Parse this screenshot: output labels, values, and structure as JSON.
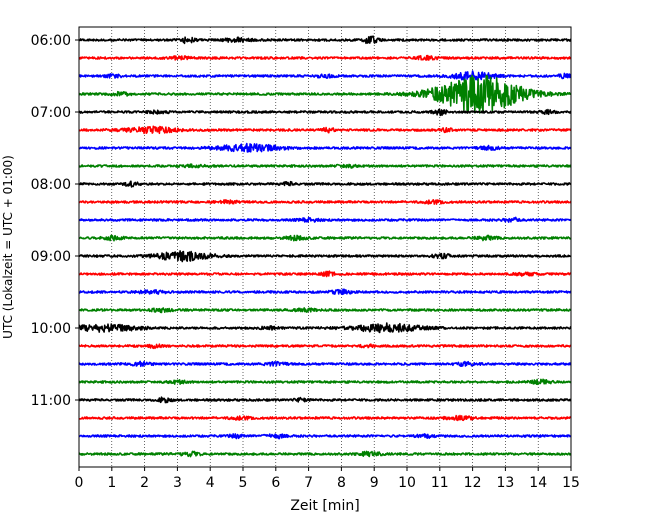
{
  "chart_data": {
    "type": "line",
    "title": "",
    "xlabel": "Zeit  [min]",
    "ylabel": "UTC (Lokalzeit = UTC + 01:00)",
    "xlim": [
      0,
      15
    ],
    "x_ticks": [
      "0",
      "1",
      "2",
      "3",
      "4",
      "5",
      "6",
      "7",
      "8",
      "9",
      "10",
      "11",
      "12",
      "13",
      "14",
      "15"
    ],
    "y_ticks": [
      "06:00",
      "07:00",
      "08:00",
      "09:00",
      "10:00",
      "11:00"
    ],
    "trace_interval_min": 15,
    "first_trace": "06:00",
    "grid": "vertical dotted at each minute",
    "line_colors": [
      "#000000",
      "#ff0000",
      "#0000ff",
      "#008000"
    ],
    "traces": [
      {
        "start": "06:00",
        "color": "#000000",
        "events": [
          {
            "t": 3.3,
            "amp": 1.0,
            "dur": 0.2
          },
          {
            "t": 4.8,
            "amp": 0.6,
            "dur": 0.4
          },
          {
            "t": 8.9,
            "amp": 1.4,
            "dur": 0.2
          }
        ]
      },
      {
        "start": "06:15",
        "color": "#ff0000",
        "events": [
          {
            "t": 3.1,
            "amp": 0.5,
            "dur": 0.3
          },
          {
            "t": 10.6,
            "amp": 0.6,
            "dur": 0.3
          }
        ]
      },
      {
        "start": "06:30",
        "color": "#0000ff",
        "events": [
          {
            "t": 1.0,
            "amp": 0.4,
            "dur": 0.3
          },
          {
            "t": 7.5,
            "amp": 0.4,
            "dur": 0.3
          },
          {
            "t": 12.0,
            "amp": 1.4,
            "dur": 0.6
          },
          {
            "t": 14.8,
            "amp": 0.6,
            "dur": 0.2
          }
        ]
      },
      {
        "start": "06:45",
        "color": "#008000",
        "events": [
          {
            "t": 1.3,
            "amp": 0.5,
            "dur": 0.3
          },
          {
            "t": 12.2,
            "amp": 6.0,
            "dur": 1.3
          }
        ]
      },
      {
        "start": "07:00",
        "color": "#000000",
        "events": [
          {
            "t": 2.4,
            "amp": 0.4,
            "dur": 0.3
          },
          {
            "t": 11.0,
            "amp": 0.8,
            "dur": 0.2
          },
          {
            "t": 14.3,
            "amp": 0.6,
            "dur": 0.2
          }
        ]
      },
      {
        "start": "07:15",
        "color": "#ff0000",
        "events": [
          {
            "t": 2.2,
            "amp": 0.9,
            "dur": 0.8
          },
          {
            "t": 7.6,
            "amp": 0.6,
            "dur": 0.2
          },
          {
            "t": 11.2,
            "amp": 0.5,
            "dur": 0.2
          }
        ]
      },
      {
        "start": "07:30",
        "color": "#0000ff",
        "events": [
          {
            "t": 5.2,
            "amp": 1.2,
            "dur": 0.9
          },
          {
            "t": 12.5,
            "amp": 0.5,
            "dur": 0.3
          }
        ]
      },
      {
        "start": "07:45",
        "color": "#008000",
        "events": [
          {
            "t": 3.5,
            "amp": 0.4,
            "dur": 0.3
          },
          {
            "t": 8.2,
            "amp": 0.4,
            "dur": 0.3
          }
        ]
      },
      {
        "start": "08:00",
        "color": "#000000",
        "events": [
          {
            "t": 1.6,
            "amp": 0.8,
            "dur": 0.2
          },
          {
            "t": 6.4,
            "amp": 0.5,
            "dur": 0.2
          }
        ]
      },
      {
        "start": "08:15",
        "color": "#ff0000",
        "events": [
          {
            "t": 4.5,
            "amp": 0.4,
            "dur": 0.3
          },
          {
            "t": 10.8,
            "amp": 0.4,
            "dur": 0.3
          }
        ]
      },
      {
        "start": "08:30",
        "color": "#0000ff",
        "events": [
          {
            "t": 7.0,
            "amp": 0.5,
            "dur": 0.3
          },
          {
            "t": 13.2,
            "amp": 0.8,
            "dur": 0.2
          }
        ]
      },
      {
        "start": "08:45",
        "color": "#008000",
        "events": [
          {
            "t": 1.0,
            "amp": 0.6,
            "dur": 0.3
          },
          {
            "t": 6.6,
            "amp": 0.6,
            "dur": 0.3
          },
          {
            "t": 12.4,
            "amp": 0.6,
            "dur": 0.3
          }
        ]
      },
      {
        "start": "09:00",
        "color": "#000000",
        "events": [
          {
            "t": 3.2,
            "amp": 1.5,
            "dur": 0.8
          },
          {
            "t": 11.1,
            "amp": 0.6,
            "dur": 0.3
          }
        ]
      },
      {
        "start": "09:15",
        "color": "#ff0000",
        "events": [
          {
            "t": 7.6,
            "amp": 0.6,
            "dur": 0.2
          },
          {
            "t": 13.6,
            "amp": 0.4,
            "dur": 0.3
          }
        ]
      },
      {
        "start": "09:30",
        "color": "#0000ff",
        "events": [
          {
            "t": 2.2,
            "amp": 0.5,
            "dur": 0.4
          },
          {
            "t": 8.0,
            "amp": 0.6,
            "dur": 0.3
          }
        ]
      },
      {
        "start": "09:45",
        "color": "#008000",
        "events": [
          {
            "t": 2.5,
            "amp": 0.5,
            "dur": 0.3
          },
          {
            "t": 6.9,
            "amp": 0.4,
            "dur": 0.3
          }
        ]
      },
      {
        "start": "10:00",
        "color": "#000000",
        "events": [
          {
            "t": 0.8,
            "amp": 1.1,
            "dur": 1.0
          },
          {
            "t": 9.4,
            "amp": 1.3,
            "dur": 1.0
          },
          {
            "t": 5.8,
            "amp": 0.4,
            "dur": 0.3
          }
        ]
      },
      {
        "start": "10:15",
        "color": "#ff0000",
        "events": [
          {
            "t": 2.3,
            "amp": 0.5,
            "dur": 0.2
          },
          {
            "t": 8.8,
            "amp": 0.4,
            "dur": 0.2
          }
        ]
      },
      {
        "start": "10:30",
        "color": "#0000ff",
        "events": [
          {
            "t": 1.9,
            "amp": 0.6,
            "dur": 0.3
          },
          {
            "t": 6.0,
            "amp": 0.5,
            "dur": 0.3
          },
          {
            "t": 11.8,
            "amp": 0.5,
            "dur": 0.3
          }
        ]
      },
      {
        "start": "10:45",
        "color": "#008000",
        "events": [
          {
            "t": 3.0,
            "amp": 0.4,
            "dur": 0.3
          },
          {
            "t": 14.1,
            "amp": 0.6,
            "dur": 0.3
          }
        ]
      },
      {
        "start": "11:00",
        "color": "#000000",
        "events": [
          {
            "t": 2.6,
            "amp": 0.7,
            "dur": 0.2
          },
          {
            "t": 6.8,
            "amp": 0.5,
            "dur": 0.2
          }
        ]
      },
      {
        "start": "11:15",
        "color": "#ff0000",
        "events": [
          {
            "t": 4.9,
            "amp": 0.4,
            "dur": 0.3
          },
          {
            "t": 11.6,
            "amp": 0.5,
            "dur": 0.4
          }
        ]
      },
      {
        "start": "11:30",
        "color": "#0000ff",
        "events": [
          {
            "t": 4.8,
            "amp": 0.6,
            "dur": 0.2
          },
          {
            "t": 6.0,
            "amp": 0.6,
            "dur": 0.3
          },
          {
            "t": 10.6,
            "amp": 0.4,
            "dur": 0.3
          }
        ]
      },
      {
        "start": "11:45",
        "color": "#008000",
        "events": [
          {
            "t": 3.4,
            "amp": 0.6,
            "dur": 0.3
          },
          {
            "t": 8.9,
            "amp": 0.7,
            "dur": 0.3
          }
        ]
      }
    ]
  }
}
